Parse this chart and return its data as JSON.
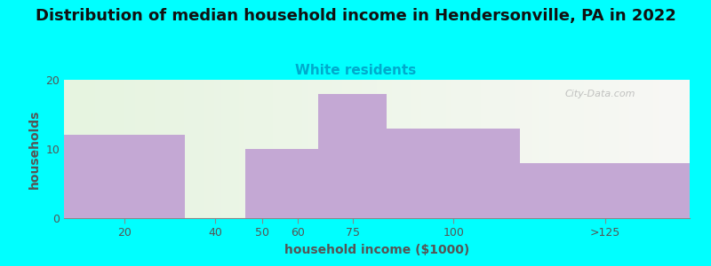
{
  "title": "Distribution of median household income in Hendersonville, PA in 2022",
  "subtitle": "White residents",
  "xlabel": "household income ($1000)",
  "ylabel": "households",
  "categories": [
    "20",
    "40",
    "50",
    "60",
    "75",
    "100",
    ">125"
  ],
  "values": [
    12,
    0,
    10,
    10,
    18,
    13,
    8
  ],
  "bar_color": "#C4A8D4",
  "background_outer": "#00FFFF",
  "background_plot_left": "#E6F4E0",
  "background_plot_right": "#F8F8F5",
  "title_fontsize": 13,
  "subtitle_fontsize": 11,
  "subtitle_color": "#00AACC",
  "ylabel_color": "#555555",
  "xlabel_color": "#555555",
  "ylim": [
    0,
    20
  ],
  "yticks": [
    0,
    10,
    20
  ],
  "watermark": "City-Data.com",
  "bar_lefts": [
    0,
    30,
    45,
    53,
    63,
    80,
    113
  ],
  "bar_rights": [
    30,
    45,
    53,
    63,
    80,
    113,
    155
  ],
  "bar_vals": [
    12,
    0,
    10,
    10,
    18,
    13,
    8
  ],
  "tick_positions": [
    15,
    37.5,
    49,
    58,
    71.5,
    96.5,
    134
  ],
  "tick_labels": [
    "20",
    "40",
    "50",
    "60",
    "75",
    "100",
    ">125"
  ],
  "xlim": [
    0,
    155
  ]
}
